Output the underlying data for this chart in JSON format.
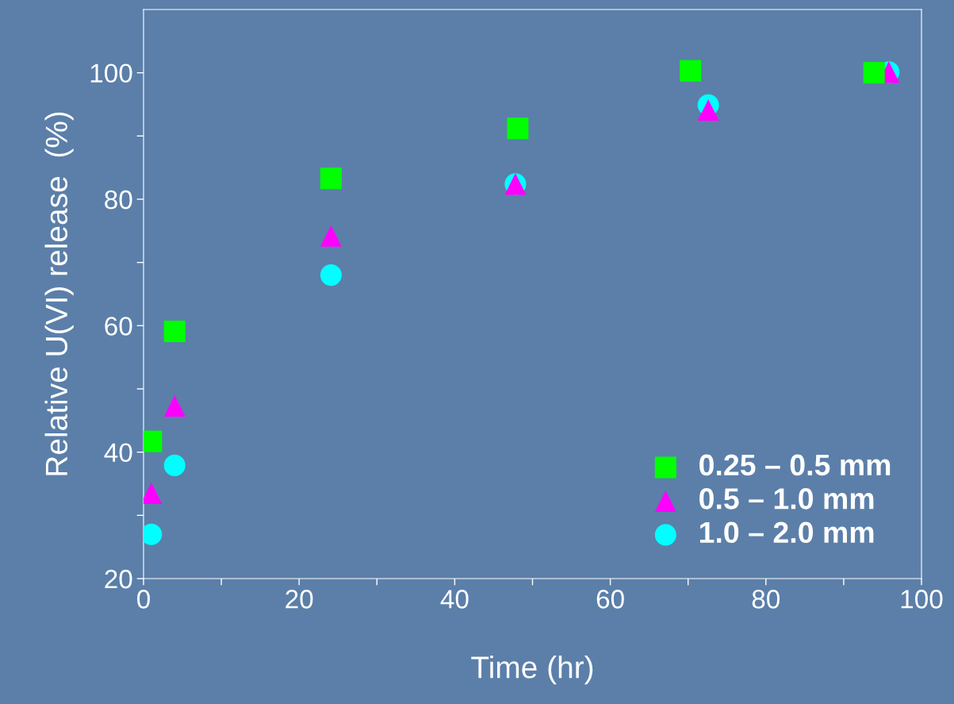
{
  "chart_data": {
    "type": "scatter",
    "xlabel": "Time (hr)",
    "ylabel": "Relative U(VI) release  (%)",
    "xlim": [
      0,
      100
    ],
    "ylim": [
      20,
      110
    ],
    "xticks": [
      0,
      {
        "value": 10,
        "label": null
      },
      20,
      {
        "value": 30,
        "label": null
      },
      40,
      {
        "value": 50,
        "label": null
      },
      60,
      {
        "value": 70,
        "label": null
      },
      80,
      {
        "value": 90,
        "label": null
      },
      100
    ],
    "yticks": [
      20,
      {
        "value": 30,
        "label": null
      },
      40,
      {
        "value": 50,
        "label": null
      },
      60,
      {
        "value": 70,
        "label": null
      },
      80,
      {
        "value": 90,
        "label": null
      },
      100
    ],
    "grid": false,
    "legend": "bottom right",
    "series": [
      {
        "name": "0.25 – 0.5 mm",
        "color": "#00ff00",
        "marker": "square",
        "x": [
          1.0,
          4.0,
          24.1,
          48.1,
          70.3,
          93.9
        ],
        "values": [
          41.7,
          59.1,
          83.3,
          91.2,
          100.3,
          100.0
        ]
      },
      {
        "name": "0.5 – 1.0 mm",
        "color": "#ff00ff",
        "marker": "triangle",
        "x": [
          1.0,
          4.0,
          24.1,
          47.8,
          72.6,
          95.8
        ],
        "values": [
          33.5,
          47.3,
          74.2,
          82.4,
          94.1,
          100.1
        ]
      },
      {
        "name": "1.0 – 2.0 mm",
        "color": "#00ffff",
        "marker": "circle",
        "x": [
          1.0,
          4.0,
          24.1,
          47.8,
          72.6,
          95.8
        ],
        "values": [
          27.0,
          37.9,
          68.0,
          82.4,
          94.9,
          100.1
        ]
      }
    ]
  }
}
